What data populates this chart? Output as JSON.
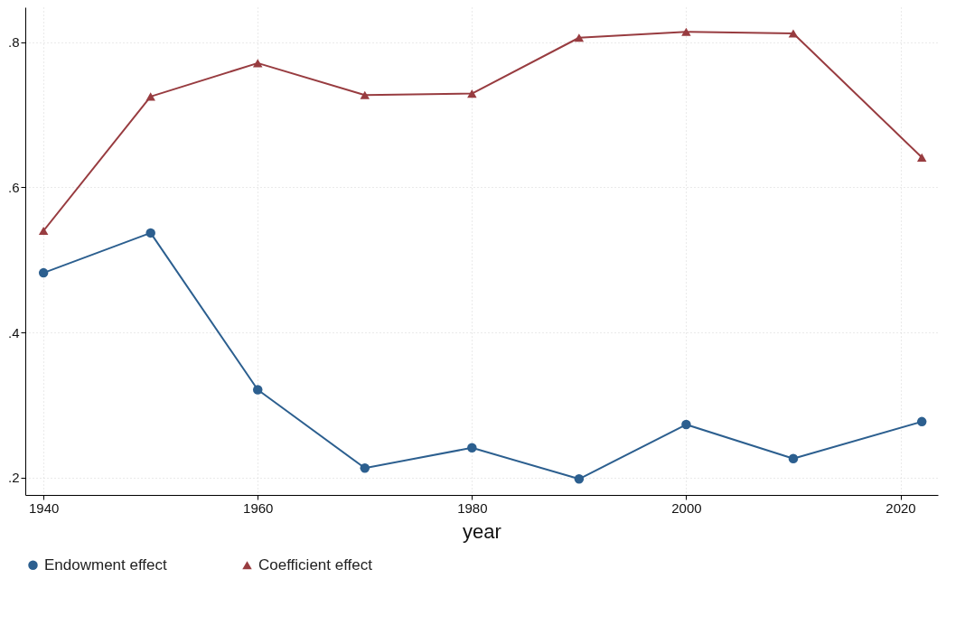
{
  "chart_data": {
    "type": "line",
    "xlabel": "year",
    "x": [
      1940,
      1950,
      1960,
      1970,
      1980,
      1990,
      2000,
      2010,
      2022
    ],
    "series": [
      {
        "name": "Endowment effect",
        "color": "#2c5f8f",
        "marker": "circle",
        "values": [
          0.482,
          0.537,
          0.321,
          0.213,
          0.241,
          0.198,
          0.273,
          0.226,
          0.277
        ]
      },
      {
        "name": "Coefficient effect",
        "color": "#983c40",
        "marker": "triangle",
        "values": [
          0.54,
          0.725,
          0.771,
          0.727,
          0.729,
          0.806,
          0.814,
          0.812,
          0.641
        ]
      }
    ],
    "xlim": [
      1938.3,
      2023.5
    ],
    "xticks": [
      1940,
      1960,
      1980,
      2000,
      2020
    ],
    "ylim": [
      0.176,
      0.848
    ],
    "yticks": [
      {
        "value": 0.2,
        "label": ".2"
      },
      {
        "value": 0.4,
        "label": ".4"
      },
      {
        "value": 0.6,
        "label": ".6"
      },
      {
        "value": 0.8,
        "label": ".8"
      }
    ],
    "grid": true,
    "legend": "bottom",
    "line_style": "solid"
  }
}
